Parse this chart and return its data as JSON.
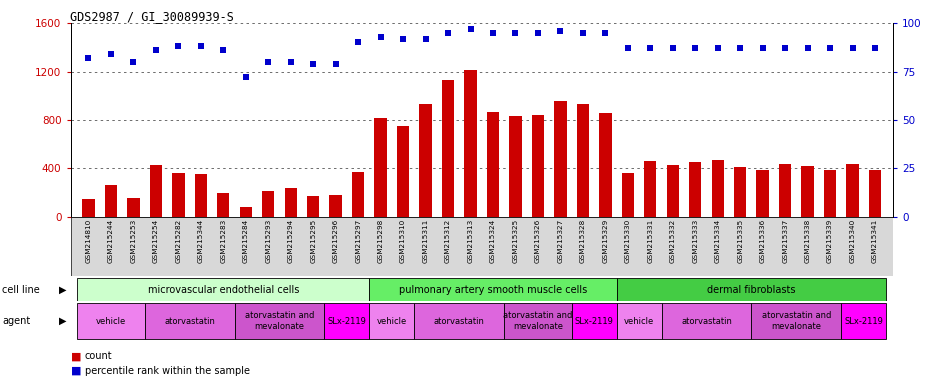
{
  "title": "GDS2987 / GI_30089939-S",
  "samples": [
    "GSM214810",
    "GSM215244",
    "GSM215253",
    "GSM215254",
    "GSM215282",
    "GSM215344",
    "GSM215283",
    "GSM215284",
    "GSM215293",
    "GSM215294",
    "GSM215295",
    "GSM215296",
    "GSM215297",
    "GSM215298",
    "GSM215310",
    "GSM215311",
    "GSM215312",
    "GSM215313",
    "GSM215324",
    "GSM215325",
    "GSM215326",
    "GSM215327",
    "GSM215328",
    "GSM215329",
    "GSM215330",
    "GSM215331",
    "GSM215332",
    "GSM215333",
    "GSM215334",
    "GSM215335",
    "GSM215336",
    "GSM215337",
    "GSM215338",
    "GSM215339",
    "GSM215340",
    "GSM215341"
  ],
  "counts": [
    150,
    260,
    155,
    430,
    360,
    355,
    195,
    85,
    215,
    235,
    175,
    185,
    370,
    820,
    750,
    930,
    1130,
    1210,
    870,
    830,
    840,
    960,
    930,
    855,
    360,
    460,
    430,
    450,
    470,
    415,
    385,
    435,
    420,
    385,
    435,
    385
  ],
  "percentile_ranks": [
    82,
    84,
    80,
    86,
    88,
    88,
    86,
    72,
    80,
    80,
    79,
    79,
    90,
    93,
    92,
    92,
    95,
    97,
    95,
    95,
    95,
    96,
    95,
    95,
    87,
    87,
    87,
    87,
    87,
    87,
    87,
    87,
    87,
    87,
    87,
    87
  ],
  "bar_color": "#cc0000",
  "dot_color": "#0000cc",
  "ylim_left": [
    0,
    1600
  ],
  "ylim_right": [
    0,
    100
  ],
  "yticks_left": [
    0,
    400,
    800,
    1200,
    1600
  ],
  "yticks_right": [
    0,
    25,
    50,
    75,
    100
  ],
  "cell_line_groups": [
    {
      "name": "microvascular endothelial cells",
      "start": 0,
      "end": 13,
      "color": "#ccffcc"
    },
    {
      "name": "pulmonary artery smooth muscle cells",
      "start": 13,
      "end": 24,
      "color": "#66ee66"
    },
    {
      "name": "dermal fibroblasts",
      "start": 24,
      "end": 36,
      "color": "#44cc44"
    }
  ],
  "agent_groups": [
    {
      "name": "vehicle",
      "start": 0,
      "end": 3,
      "color": "#ee82ee"
    },
    {
      "name": "atorvastatin",
      "start": 3,
      "end": 7,
      "color": "#dd66dd"
    },
    {
      "name": "atorvastatin and\nmevalonate",
      "start": 7,
      "end": 11,
      "color": "#cc55cc"
    },
    {
      "name": "SLx-2119",
      "start": 11,
      "end": 13,
      "color": "#ff00ff"
    },
    {
      "name": "vehicle",
      "start": 13,
      "end": 15,
      "color": "#ee82ee"
    },
    {
      "name": "atorvastatin",
      "start": 15,
      "end": 19,
      "color": "#dd66dd"
    },
    {
      "name": "atorvastatin and\nmevalonate",
      "start": 19,
      "end": 22,
      "color": "#cc55cc"
    },
    {
      "name": "SLx-2119",
      "start": 22,
      "end": 24,
      "color": "#ff00ff"
    },
    {
      "name": "vehicle",
      "start": 24,
      "end": 26,
      "color": "#ee82ee"
    },
    {
      "name": "atorvastatin",
      "start": 26,
      "end": 30,
      "color": "#dd66dd"
    },
    {
      "name": "atorvastatin and\nmevalonate",
      "start": 30,
      "end": 34,
      "color": "#cc55cc"
    },
    {
      "name": "SLx-2119",
      "start": 34,
      "end": 36,
      "color": "#ff00ff"
    }
  ],
  "legend_items": [
    {
      "label": "count",
      "color": "#cc0000"
    },
    {
      "label": "percentile rank within the sample",
      "color": "#0000cc"
    }
  ],
  "background_color": "#ffffff",
  "grid_color": "#555555",
  "tick_color_left": "#cc0000",
  "tick_color_right": "#0000cc",
  "xticklabel_bg": "#d8d8d8"
}
